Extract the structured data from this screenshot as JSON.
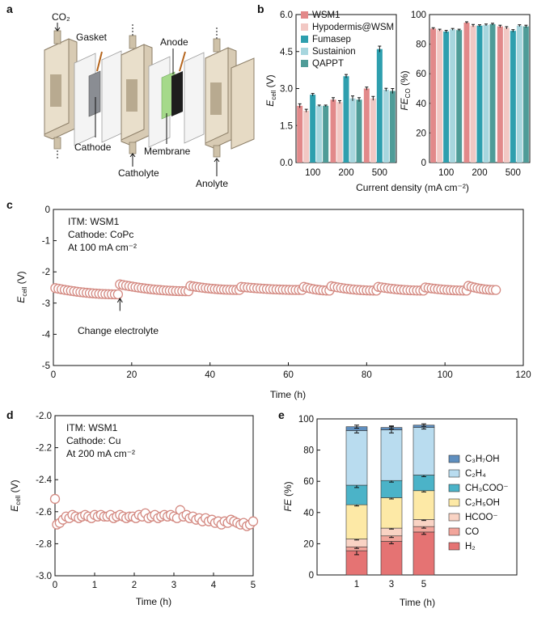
{
  "panels": {
    "a": {
      "label": "a",
      "callouts": {
        "co2": "CO₂",
        "gasket": "Gasket",
        "anode": "Anode",
        "cathode": "Cathode",
        "membrane": "Membrane",
        "catholyte": "Catholyte",
        "anolyte": "Anolyte"
      }
    }
  },
  "chart_data": [
    {
      "id": "b-left",
      "panel": "b",
      "type": "bar",
      "ylabel_main": "E",
      "ylabel_sub": "cell",
      "ylabel_unit": "(V)",
      "categories": [
        "100",
        "200",
        "500"
      ],
      "ylim": [
        0,
        6
      ],
      "yticks": [
        "0.0",
        "1.5",
        "3.0",
        "4.5",
        "6.0"
      ],
      "series": [
        {
          "name": "WSM1",
          "color": "#e2898a",
          "values": [
            2.3,
            2.55,
            3.0
          ],
          "err": [
            0.08,
            0.08,
            0.06
          ]
        },
        {
          "name": "Hypodermis@WSM",
          "color": "#f2c8c4",
          "values": [
            2.1,
            2.45,
            2.6
          ],
          "err": [
            0.06,
            0.06,
            0.08
          ]
        },
        {
          "name": "Fumasep",
          "color": "#2e9fae",
          "values": [
            2.75,
            3.5,
            4.6
          ],
          "err": [
            0.05,
            0.07,
            0.12
          ]
        },
        {
          "name": "Sustainion",
          "color": "#a7d6de",
          "values": [
            2.3,
            2.6,
            2.95
          ],
          "err": [
            0.03,
            0.1,
            0.06
          ]
        },
        {
          "name": "QAPPT",
          "color": "#4f9c98",
          "values": [
            2.3,
            2.55,
            2.9
          ],
          "err": [
            0.03,
            0.08,
            0.1
          ]
        }
      ]
    },
    {
      "id": "b-right",
      "panel": "b",
      "type": "bar",
      "ylabel_main": "FE",
      "ylabel_sub": "CO",
      "ylabel_unit": "(%)",
      "xlabel": "Current density (mA cm⁻²)",
      "categories": [
        "100",
        "200",
        "500"
      ],
      "ylim": [
        0,
        100
      ],
      "yticks": [
        "0",
        "20",
        "40",
        "60",
        "80",
        "100"
      ],
      "series": [
        {
          "name": "WSM1",
          "values": [
            90.5,
            94.5,
            92.0
          ],
          "err": [
            0.6,
            0.6,
            0.8
          ]
        },
        {
          "name": "Hypodermis@WSM",
          "values": [
            89.5,
            92.5,
            91.0
          ],
          "err": [
            0.6,
            0.8,
            0.8
          ]
        },
        {
          "name": "Fumasep",
          "values": [
            88.5,
            92.5,
            89.0
          ],
          "err": [
            0.8,
            0.6,
            0.8
          ]
        },
        {
          "name": "Sustainion",
          "values": [
            90.0,
            93.0,
            92.5
          ],
          "err": [
            0.6,
            0.6,
            0.6
          ]
        },
        {
          "name": "QAPPT",
          "values": [
            89.5,
            93.5,
            92.0
          ],
          "err": [
            0.6,
            0.6,
            0.8
          ]
        }
      ]
    },
    {
      "id": "c",
      "panel": "c",
      "type": "scatter",
      "ylabel_main": "E",
      "ylabel_sub": "cell",
      "ylabel_unit": "(V)",
      "xlabel": "Time (h)",
      "xlim": [
        0,
        120
      ],
      "ylim": [
        -5,
        0
      ],
      "xticks": [
        "0",
        "20",
        "40",
        "60",
        "80",
        "100",
        "120"
      ],
      "yticks": [
        "0",
        "-1",
        "-2",
        "-3",
        "-4",
        "-5"
      ],
      "annotation_lines": [
        "ITM: WSM1",
        "Cathode: CoPc",
        "At 100 mA cm⁻²"
      ],
      "arrow_note": "Change electrolyte",
      "arrow_x": 17,
      "segments": [
        {
          "x_start": 0.5,
          "x_end": 16.5,
          "y_start": -2.52,
          "y_end": -2.72,
          "step": 0.8
        },
        {
          "x_start": 17.0,
          "x_end": 34.5,
          "y_start": -2.4,
          "y_end": -2.62,
          "step": 0.8
        },
        {
          "x_start": 35.0,
          "x_end": 47.5,
          "y_start": -2.45,
          "y_end": -2.58,
          "step": 0.8
        },
        {
          "x_start": 48.0,
          "x_end": 63.5,
          "y_start": -2.48,
          "y_end": -2.58,
          "step": 0.8
        },
        {
          "x_start": 64.0,
          "x_end": 70.5,
          "y_start": -2.48,
          "y_end": -2.6,
          "step": 0.8
        },
        {
          "x_start": 71.0,
          "x_end": 82.5,
          "y_start": -2.46,
          "y_end": -2.6,
          "step": 0.8
        },
        {
          "x_start": 83.0,
          "x_end": 94.5,
          "y_start": -2.48,
          "y_end": -2.6,
          "step": 0.8
        },
        {
          "x_start": 95.0,
          "x_end": 105.5,
          "y_start": -2.5,
          "y_end": -2.6,
          "step": 0.8
        },
        {
          "x_start": 106.0,
          "x_end": 113.0,
          "y_start": -2.45,
          "y_end": -2.58,
          "step": 0.8
        }
      ]
    },
    {
      "id": "d",
      "panel": "d",
      "type": "scatter",
      "ylabel_main": "E",
      "ylabel_sub": "cell",
      "ylabel_unit": "(V)",
      "xlabel": "Time (h)",
      "xlim": [
        0,
        5
      ],
      "ylim": [
        -3.0,
        -2.0
      ],
      "xticks": [
        "0",
        "1",
        "2",
        "3",
        "4",
        "5"
      ],
      "yticks": [
        "-2.0",
        "-2.2",
        "-2.4",
        "-2.6",
        "-2.8",
        "-3.0"
      ],
      "annotation_lines": [
        "ITM: WSM1",
        "Cathode: Cu",
        "At 200 mA cm⁻²"
      ],
      "points": [
        [
          0.0,
          -2.52
        ],
        [
          0.05,
          -2.68
        ],
        [
          0.12,
          -2.67
        ],
        [
          0.2,
          -2.65
        ],
        [
          0.28,
          -2.63
        ],
        [
          0.36,
          -2.64
        ],
        [
          0.44,
          -2.62
        ],
        [
          0.52,
          -2.63
        ],
        [
          0.6,
          -2.64
        ],
        [
          0.68,
          -2.63
        ],
        [
          0.76,
          -2.62
        ],
        [
          0.84,
          -2.63
        ],
        [
          0.92,
          -2.64
        ],
        [
          1.0,
          -2.62
        ],
        [
          1.08,
          -2.63
        ],
        [
          1.16,
          -2.62
        ],
        [
          1.24,
          -2.63
        ],
        [
          1.32,
          -2.63
        ],
        [
          1.4,
          -2.62
        ],
        [
          1.48,
          -2.64
        ],
        [
          1.56,
          -2.63
        ],
        [
          1.64,
          -2.62
        ],
        [
          1.72,
          -2.63
        ],
        [
          1.8,
          -2.64
        ],
        [
          1.88,
          -2.63
        ],
        [
          1.96,
          -2.63
        ],
        [
          2.04,
          -2.64
        ],
        [
          2.12,
          -2.62
        ],
        [
          2.2,
          -2.63
        ],
        [
          2.28,
          -2.61
        ],
        [
          2.36,
          -2.64
        ],
        [
          2.44,
          -2.63
        ],
        [
          2.52,
          -2.62
        ],
        [
          2.6,
          -2.64
        ],
        [
          2.68,
          -2.63
        ],
        [
          2.76,
          -2.62
        ],
        [
          2.84,
          -2.63
        ],
        [
          2.92,
          -2.62
        ],
        [
          3.0,
          -2.63
        ],
        [
          3.08,
          -2.64
        ],
        [
          3.16,
          -2.59
        ],
        [
          3.24,
          -2.63
        ],
        [
          3.32,
          -2.62
        ],
        [
          3.4,
          -2.64
        ],
        [
          3.48,
          -2.63
        ],
        [
          3.56,
          -2.65
        ],
        [
          3.64,
          -2.64
        ],
        [
          3.72,
          -2.66
        ],
        [
          3.8,
          -2.64
        ],
        [
          3.88,
          -2.66
        ],
        [
          3.96,
          -2.65
        ],
        [
          4.04,
          -2.67
        ],
        [
          4.12,
          -2.66
        ],
        [
          4.2,
          -2.68
        ],
        [
          4.28,
          -2.66
        ],
        [
          4.36,
          -2.67
        ],
        [
          4.44,
          -2.65
        ],
        [
          4.52,
          -2.66
        ],
        [
          4.6,
          -2.67
        ],
        [
          4.68,
          -2.68
        ],
        [
          4.76,
          -2.67
        ],
        [
          4.84,
          -2.69
        ],
        [
          4.92,
          -2.68
        ],
        [
          5.0,
          -2.66
        ]
      ]
    },
    {
      "id": "e",
      "panel": "e",
      "type": "bar",
      "stacked": true,
      "ylabel_main": "FE",
      "ylabel_unit": "(%)",
      "xlabel": "Time (h)",
      "categories": [
        "1",
        "3",
        "5"
      ],
      "ylim": [
        0,
        100
      ],
      "yticks": [
        "0",
        "20",
        "40",
        "60",
        "80",
        "100"
      ],
      "series": [
        {
          "name": "H₂",
          "color": "#e57373",
          "values": [
            15.5,
            21.5,
            27.5
          ],
          "err": [
            2.5,
            1.5,
            1.5
          ]
        },
        {
          "name": "CO",
          "color": "#f2a59b",
          "values": [
            2.5,
            3.5,
            3.5
          ],
          "err": [
            1.0,
            1.0,
            1.0
          ]
        },
        {
          "name": "HCOO⁻",
          "color": "#f9d3c4",
          "values": [
            5.0,
            5.0,
            4.5
          ],
          "err": [
            0.6,
            0.6,
            0.6
          ]
        },
        {
          "name": "C₂H₅OH",
          "color": "#fde9a6",
          "values": [
            22.0,
            19.5,
            18.5
          ],
          "err": [
            0.8,
            0.8,
            0.8
          ]
        },
        {
          "name": "CH₃COO⁻",
          "color": "#4bb3c8",
          "values": [
            12.5,
            11.0,
            10.0
          ],
          "err": [
            1.5,
            1.0,
            1.0
          ]
        },
        {
          "name": "C₂H₄",
          "color": "#b9dcef",
          "values": [
            35.0,
            32.5,
            30.5
          ],
          "err": [
            1.5,
            2.0,
            1.0
          ]
        },
        {
          "name": "C₃H₇OH",
          "color": "#5f8fbf",
          "values": [
            2.5,
            1.5,
            1.5
          ],
          "err": [
            1.0,
            1.0,
            0.8
          ]
        }
      ]
    }
  ]
}
